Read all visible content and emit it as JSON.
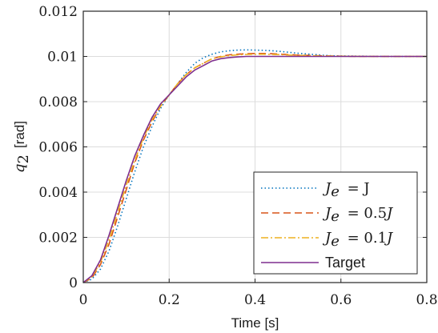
{
  "chart_data": {
    "type": "line",
    "xlabel": "Time [s]",
    "ylabel": {
      "symbol": "q",
      "subscript": "2",
      "unit": "[rad]"
    },
    "xlim": [
      0,
      0.8
    ],
    "ylim": [
      0,
      0.012
    ],
    "xticks": [
      "0",
      "0.2",
      "0.4",
      "0.6",
      "0.8"
    ],
    "xtick_values": [
      0,
      0.2,
      0.4,
      0.6,
      0.8
    ],
    "yticks": [
      "0",
      "0.002",
      "0.004",
      "0.006",
      "0.008",
      "0.01",
      "0.012"
    ],
    "ytick_values": [
      0,
      0.002,
      0.004,
      0.006,
      0.008,
      0.01,
      0.012
    ],
    "grid": true,
    "legend_position": "bottom-right",
    "series": [
      {
        "name": "J_e = J",
        "legend": {
          "var": "J",
          "sub": "e",
          "rhs": "= J"
        },
        "color": "#0072BD",
        "style": "dotted",
        "x": [
          0,
          0.02,
          0.04,
          0.06,
          0.08,
          0.1,
          0.12,
          0.14,
          0.16,
          0.18,
          0.2,
          0.22,
          0.24,
          0.26,
          0.28,
          0.3,
          0.32,
          0.34,
          0.36,
          0.38,
          0.4,
          0.42,
          0.44,
          0.46,
          0.48,
          0.5,
          0.52,
          0.54,
          0.56,
          0.58,
          0.6,
          0.65,
          0.7,
          0.75,
          0.8
        ],
        "y": [
          0,
          0.00015,
          0.0006,
          0.0014,
          0.0025,
          0.0037,
          0.0049,
          0.006,
          0.0069,
          0.0077,
          0.0083,
          0.0088,
          0.0093,
          0.0097,
          0.00995,
          0.0101,
          0.0102,
          0.01025,
          0.01028,
          0.01029,
          0.01028,
          0.01027,
          0.01025,
          0.01022,
          0.01018,
          0.01014,
          0.01011,
          0.01008,
          0.01005,
          0.01003,
          0.01002,
          0.01001,
          0.01,
          0.01,
          0.01
        ]
      },
      {
        "name": "J_e = 0.5J",
        "legend": {
          "var": "J",
          "sub": "e",
          "rhs": "= 0.5",
          "rhs_var": "J"
        },
        "color": "#D95319",
        "style": "dashed",
        "x": [
          0,
          0.02,
          0.04,
          0.06,
          0.08,
          0.1,
          0.12,
          0.14,
          0.16,
          0.18,
          0.2,
          0.22,
          0.24,
          0.26,
          0.28,
          0.3,
          0.32,
          0.34,
          0.36,
          0.38,
          0.4,
          0.42,
          0.44,
          0.46,
          0.48,
          0.5,
          0.55,
          0.6,
          0.65,
          0.7,
          0.75,
          0.8
        ],
        "y": [
          0,
          0.0002,
          0.0008,
          0.0017,
          0.0029,
          0.0041,
          0.0053,
          0.0063,
          0.0071,
          0.0078,
          0.0083,
          0.0088,
          0.0092,
          0.0095,
          0.0097,
          0.0099,
          0.01,
          0.01007,
          0.0101,
          0.01012,
          0.01013,
          0.01013,
          0.01012,
          0.0101,
          0.01008,
          0.01006,
          0.01003,
          0.01001,
          0.01,
          0.01,
          0.01,
          0.01
        ]
      },
      {
        "name": "J_e = 0.1J",
        "legend": {
          "var": "J",
          "sub": "e",
          "rhs": "= 0.1",
          "rhs_var": "J"
        },
        "color": "#EDB120",
        "style": "dashdot",
        "x": [
          0,
          0.02,
          0.04,
          0.06,
          0.08,
          0.1,
          0.12,
          0.14,
          0.16,
          0.18,
          0.2,
          0.22,
          0.24,
          0.26,
          0.28,
          0.3,
          0.32,
          0.34,
          0.36,
          0.38,
          0.4,
          0.42,
          0.44,
          0.46,
          0.48,
          0.5,
          0.55,
          0.6,
          0.65,
          0.7,
          0.75,
          0.8
        ],
        "y": [
          0,
          0.00025,
          0.0009,
          0.0019,
          0.0031,
          0.0043,
          0.0054,
          0.0064,
          0.0072,
          0.0078,
          0.0083,
          0.0088,
          0.0092,
          0.0095,
          0.0097,
          0.0099,
          0.00998,
          0.01004,
          0.01007,
          0.01009,
          0.0101,
          0.0101,
          0.01009,
          0.01008,
          0.01006,
          0.01005,
          0.01002,
          0.01001,
          0.01,
          0.01,
          0.01,
          0.01
        ]
      },
      {
        "name": "Target",
        "legend": {
          "text": "Target"
        },
        "color": "#7E2F8E",
        "style": "solid",
        "x": [
          0,
          0.02,
          0.04,
          0.06,
          0.08,
          0.1,
          0.12,
          0.14,
          0.16,
          0.18,
          0.2,
          0.22,
          0.24,
          0.26,
          0.28,
          0.3,
          0.32,
          0.34,
          0.36,
          0.38,
          0.4,
          0.42,
          0.44,
          0.46,
          0.48,
          0.5,
          0.55,
          0.6,
          0.65,
          0.7,
          0.75,
          0.8
        ],
        "y": [
          0,
          0.0003,
          0.001,
          0.0021,
          0.0033,
          0.0045,
          0.0056,
          0.0065,
          0.0073,
          0.0079,
          0.0083,
          0.0087,
          0.0091,
          0.0094,
          0.0096,
          0.0098,
          0.0099,
          0.00995,
          0.00998,
          0.01,
          0.01,
          0.01,
          0.01,
          0.01,
          0.01,
          0.01,
          0.01,
          0.01,
          0.01,
          0.01,
          0.01,
          0.01
        ]
      }
    ]
  }
}
